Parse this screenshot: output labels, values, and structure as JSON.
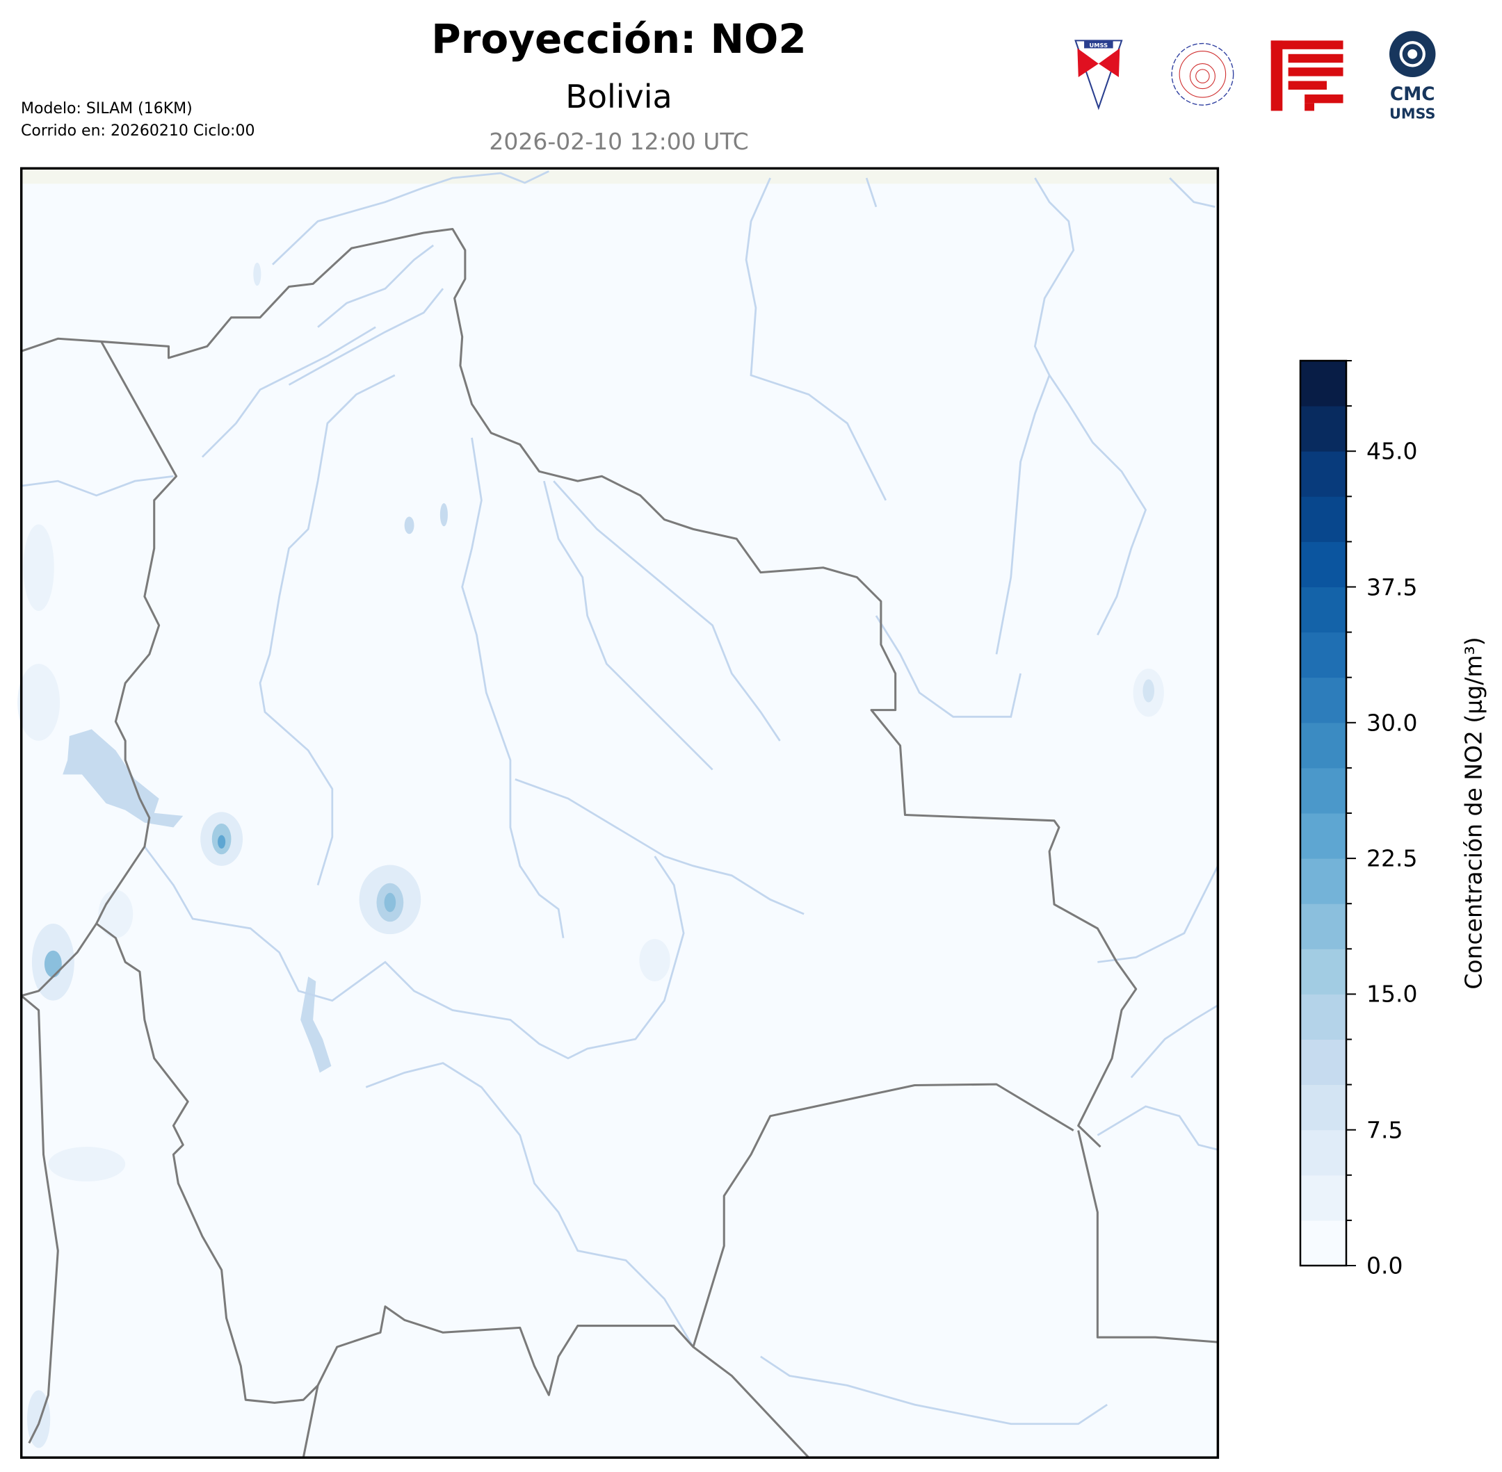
{
  "header": {
    "title": "Proyección: NO2",
    "subtitle": "Bolivia",
    "datetime": "2026-02-10 12:00 UTC",
    "model_line": "Modelo: SILAM (16KM)",
    "run_line": "Corrido en: 20260210 Ciclo:00"
  },
  "logos": [
    {
      "name": "umss-logo",
      "text": "UMSS"
    },
    {
      "name": "departamento-fisica-logo",
      "text": "DEPARTAMENTO DE FÍSICA"
    },
    {
      "name": "fcyt-logo",
      "text": ""
    },
    {
      "name": "cmc-umss-logo",
      "text": "CMC UMSS"
    }
  ],
  "map": {
    "region": "Bolivia",
    "ocean_color": "#f7fbff",
    "border_color": "#7a7a7a",
    "river_color": "#c2d6ee"
  },
  "colorbar": {
    "label": "Concentración de NO2 (µg/m³)",
    "min": 0,
    "max": 50,
    "step": 2.5,
    "ticks": [
      "0.0",
      "7.5",
      "15.0",
      "22.5",
      "30.0",
      "37.5",
      "45.0"
    ],
    "colors": [
      "#f7fbff",
      "#ebf3fb",
      "#e0ecf8",
      "#d3e4f3",
      "#c6dbef",
      "#b4d3e9",
      "#a2cce3",
      "#8bbfdd",
      "#74b3d8",
      "#5ea6d2",
      "#4b98ca",
      "#3b8bc2",
      "#2d7dbb",
      "#1f6fb3",
      "#1463a9",
      "#0b559f",
      "#08478d",
      "#083b7c",
      "#082b5f",
      "#081d46"
    ]
  }
}
